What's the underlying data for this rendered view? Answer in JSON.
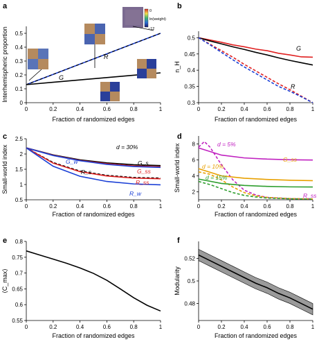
{
  "panel_letters": [
    "a",
    "b",
    "c",
    "d",
    "e",
    "f"
  ],
  "chart_data": [
    {
      "panel": "a",
      "type": "line",
      "xlabel": "Fraction of randomized edges",
      "ylabel": "Interhemispheric proportion",
      "xlim": [
        0,
        1
      ],
      "ylim": [
        0,
        0.55
      ],
      "xticks": [
        "0",
        "0.2",
        "0.4",
        "0.6",
        "0.8",
        "1"
      ],
      "yticks": [
        "0",
        "0.1",
        "0.2",
        "0.3",
        "0.4",
        "0.5"
      ],
      "series": [
        {
          "name": "R",
          "color": "#1a3fd6",
          "dashed_overlay": "#000000",
          "x": [
            0,
            0.2,
            0.4,
            0.6,
            0.8,
            1
          ],
          "y": [
            0.13,
            0.204,
            0.278,
            0.352,
            0.426,
            0.5
          ]
        },
        {
          "name": "G",
          "color": "#000000",
          "x": [
            0,
            0.2,
            0.4,
            0.6,
            0.8,
            1
          ],
          "y": [
            0.13,
            0.147,
            0.164,
            0.181,
            0.198,
            0.215
          ]
        }
      ],
      "annotations": [
        "R",
        "G"
      ],
      "colorbar": {
        "label": "ln(weight)",
        "top": "0",
        "bottom": "−12"
      },
      "grid": false
    },
    {
      "panel": "b",
      "type": "line",
      "xlabel": "Fraction of randomized edges",
      "ylabel": "n_H",
      "xlim": [
        0,
        1
      ],
      "ylim": [
        0.3,
        0.52
      ],
      "xticks": [
        "0",
        "0.2",
        "0.4",
        "0.6",
        "0.8",
        "1"
      ],
      "yticks": [
        "0.3",
        "0.35",
        "0.4",
        "0.45",
        "0.5"
      ],
      "series": [
        {
          "name": "G",
          "color": "#e02020",
          "x": [
            0,
            0.1,
            0.2,
            0.3,
            0.4,
            0.5,
            0.6,
            0.7,
            0.8,
            0.9,
            1
          ],
          "y": [
            0.5,
            0.493,
            0.486,
            0.478,
            0.472,
            0.465,
            0.46,
            0.452,
            0.447,
            0.441,
            0.44
          ]
        },
        {
          "name": "",
          "color": "#000000",
          "x": [
            0,
            0.1,
            0.2,
            0.3,
            0.4,
            0.5,
            0.6,
            0.7,
            0.8,
            0.9,
            1
          ],
          "y": [
            0.5,
            0.49,
            0.481,
            0.472,
            0.464,
            0.455,
            0.447,
            0.438,
            0.43,
            0.423,
            0.416
          ]
        },
        {
          "name": "R",
          "color": "#e02020",
          "dashed": true,
          "x": [
            0,
            0.1,
            0.2,
            0.3,
            0.4,
            0.5,
            0.6,
            0.7,
            0.8,
            0.9,
            1
          ],
          "y": [
            0.5,
            0.48,
            0.46,
            0.44,
            0.418,
            0.398,
            0.378,
            0.358,
            0.34,
            0.32,
            0.3
          ]
        },
        {
          "name": "",
          "color": "#1a3fd6",
          "dashed": true,
          "x": [
            0,
            0.1,
            0.2,
            0.3,
            0.4,
            0.5,
            0.6,
            0.7,
            0.8,
            0.9,
            1
          ],
          "y": [
            0.5,
            0.478,
            0.455,
            0.432,
            0.41,
            0.39,
            0.37,
            0.35,
            0.335,
            0.318,
            0.3
          ]
        }
      ],
      "annotations": [
        "G",
        "R"
      ],
      "grid": false
    },
    {
      "panel": "c",
      "type": "line",
      "xlabel": "Fraction of randomized edges",
      "ylabel": "Small-world index",
      "xlim": [
        0,
        1
      ],
      "ylim": [
        0.5,
        2.5
      ],
      "xticks": [
        "0",
        "0.2",
        "0.4",
        "0.6",
        "0.8",
        "1"
      ],
      "yticks": [
        "0.5",
        "1",
        "1.5",
        "2",
        "2.5"
      ],
      "annotation": "d = 30%",
      "series": [
        {
          "name": "G_s",
          "color": "#000000",
          "x": [
            0,
            0.2,
            0.4,
            0.6,
            0.8,
            1
          ],
          "y": [
            2.2,
            1.97,
            1.81,
            1.71,
            1.65,
            1.62
          ]
        },
        {
          "name": "G_ss",
          "color": "#e02020",
          "x": [
            0,
            0.2,
            0.4,
            0.6,
            0.8,
            1
          ],
          "y": [
            2.2,
            1.96,
            1.79,
            1.68,
            1.61,
            1.58
          ]
        },
        {
          "name": "G_w",
          "color": "#1a3fd6",
          "x": [
            0,
            0.2,
            0.4,
            0.6,
            0.8,
            1
          ],
          "y": [
            2.2,
            1.95,
            1.78,
            1.66,
            1.59,
            1.56
          ]
        },
        {
          "name": "R_s",
          "color": "#000000",
          "dashed": true,
          "x": [
            0,
            0.2,
            0.4,
            0.6,
            0.8,
            1
          ],
          "y": [
            2.2,
            1.72,
            1.44,
            1.3,
            1.23,
            1.21
          ]
        },
        {
          "name": "R_ss",
          "color": "#e02020",
          "x": [
            0,
            0.2,
            0.4,
            0.6,
            0.8,
            1
          ],
          "y": [
            2.2,
            1.7,
            1.42,
            1.28,
            1.21,
            1.19
          ]
        },
        {
          "name": "R_w",
          "color": "#1a3fd6",
          "x": [
            0,
            0.2,
            0.4,
            0.6,
            0.8,
            1
          ],
          "y": [
            2.2,
            1.6,
            1.27,
            1.1,
            1.02,
            0.99
          ]
        }
      ],
      "grid": false
    },
    {
      "panel": "d",
      "type": "line",
      "xlabel": "Fraction of randomized edges",
      "ylabel": "Small-world index",
      "xlim": [
        0,
        1
      ],
      "ylim": [
        1,
        9
      ],
      "xticks": [
        "0",
        "0.2",
        "0.4",
        "0.6",
        "0.8",
        "1"
      ],
      "yticks": [
        "2",
        "4",
        "6",
        "8"
      ],
      "annotations": [
        "d = 5%",
        "d = 10%",
        "d = 15%",
        "G_ss",
        "R_ss"
      ],
      "series": [
        {
          "name": "G_ss d=5%",
          "color": "#c021c0",
          "x": [
            0,
            0.2,
            0.4,
            0.6,
            0.8,
            1
          ],
          "y": [
            7.5,
            6.6,
            6.25,
            6.1,
            6.02,
            5.98
          ]
        },
        {
          "name": "R_ss d=5%",
          "color": "#c021c0",
          "dashed": true,
          "x": [
            0,
            0.05,
            0.1,
            0.2,
            0.3,
            0.4,
            0.5,
            0.6,
            0.8,
            1
          ],
          "y": [
            7.6,
            8.3,
            7.6,
            5.4,
            3.5,
            2.2,
            1.6,
            1.3,
            1.15,
            1.1
          ]
        },
        {
          "name": "G_ss d=10%",
          "color": "#e8a000",
          "x": [
            0,
            0.2,
            0.4,
            0.6,
            0.8,
            1
          ],
          "y": [
            4.9,
            4.0,
            3.7,
            3.55,
            3.45,
            3.4
          ]
        },
        {
          "name": "R_ss d=10%",
          "color": "#e8a000",
          "dashed": true,
          "x": [
            0,
            0.1,
            0.2,
            0.3,
            0.4,
            0.5,
            0.6,
            0.8,
            1
          ],
          "y": [
            4.5,
            4.2,
            3.5,
            2.6,
            1.9,
            1.5,
            1.3,
            1.15,
            1.1
          ]
        },
        {
          "name": "G_ss d=15%",
          "color": "#2e9e2e",
          "x": [
            0,
            0.2,
            0.4,
            0.6,
            0.8,
            1
          ],
          "y": [
            3.6,
            3.05,
            2.8,
            2.68,
            2.62,
            2.6
          ]
        },
        {
          "name": "R_ss d=15%",
          "color": "#2e9e2e",
          "dashed": true,
          "x": [
            0,
            0.1,
            0.2,
            0.3,
            0.4,
            0.5,
            0.6,
            0.8,
            1
          ],
          "y": [
            3.3,
            2.9,
            2.4,
            1.9,
            1.55,
            1.35,
            1.22,
            1.12,
            1.08
          ]
        }
      ],
      "grid": false
    },
    {
      "panel": "e",
      "type": "line",
      "xlabel": "Fraction of randomized edges",
      "ylabel": "⟨C_max⟩",
      "xlim": [
        0,
        1
      ],
      "ylim": [
        0.55,
        0.8
      ],
      "xticks": [
        "0",
        "0.2",
        "0.4",
        "0.6",
        "0.8",
        "1"
      ],
      "yticks": [
        "0.55",
        "0.6",
        "0.65",
        "0.7",
        "0.75",
        "0.8"
      ],
      "series": [
        {
          "name": "",
          "color": "#000000",
          "x": [
            0,
            0.1,
            0.2,
            0.3,
            0.4,
            0.5,
            0.6,
            0.7,
            0.8,
            0.9,
            1
          ],
          "y": [
            0.77,
            0.757,
            0.744,
            0.731,
            0.716,
            0.699,
            0.677,
            0.65,
            0.622,
            0.598,
            0.58
          ]
        }
      ],
      "grid": false
    },
    {
      "panel": "f",
      "type": "line",
      "xlabel": "Fraction of randomized edges",
      "ylabel": "Modularity",
      "xlim": [
        0,
        1
      ],
      "ylim": [
        0.465,
        0.535
      ],
      "xticks": [
        "0",
        "0.2",
        "0.4",
        "0.6",
        "0.8",
        "1"
      ],
      "yticks": [
        "0.48",
        "0.5",
        "0.52"
      ],
      "series": [
        {
          "name": "",
          "color": "#000000",
          "band_color": "#9a9a9a",
          "band": 0.005,
          "x": [
            0,
            0.1,
            0.2,
            0.3,
            0.4,
            0.5,
            0.6,
            0.7,
            0.8,
            0.9,
            1
          ],
          "y": [
            0.523,
            0.518,
            0.513,
            0.508,
            0.503,
            0.498,
            0.494,
            0.489,
            0.485,
            0.48,
            0.475
          ]
        }
      ],
      "grid": false
    }
  ]
}
